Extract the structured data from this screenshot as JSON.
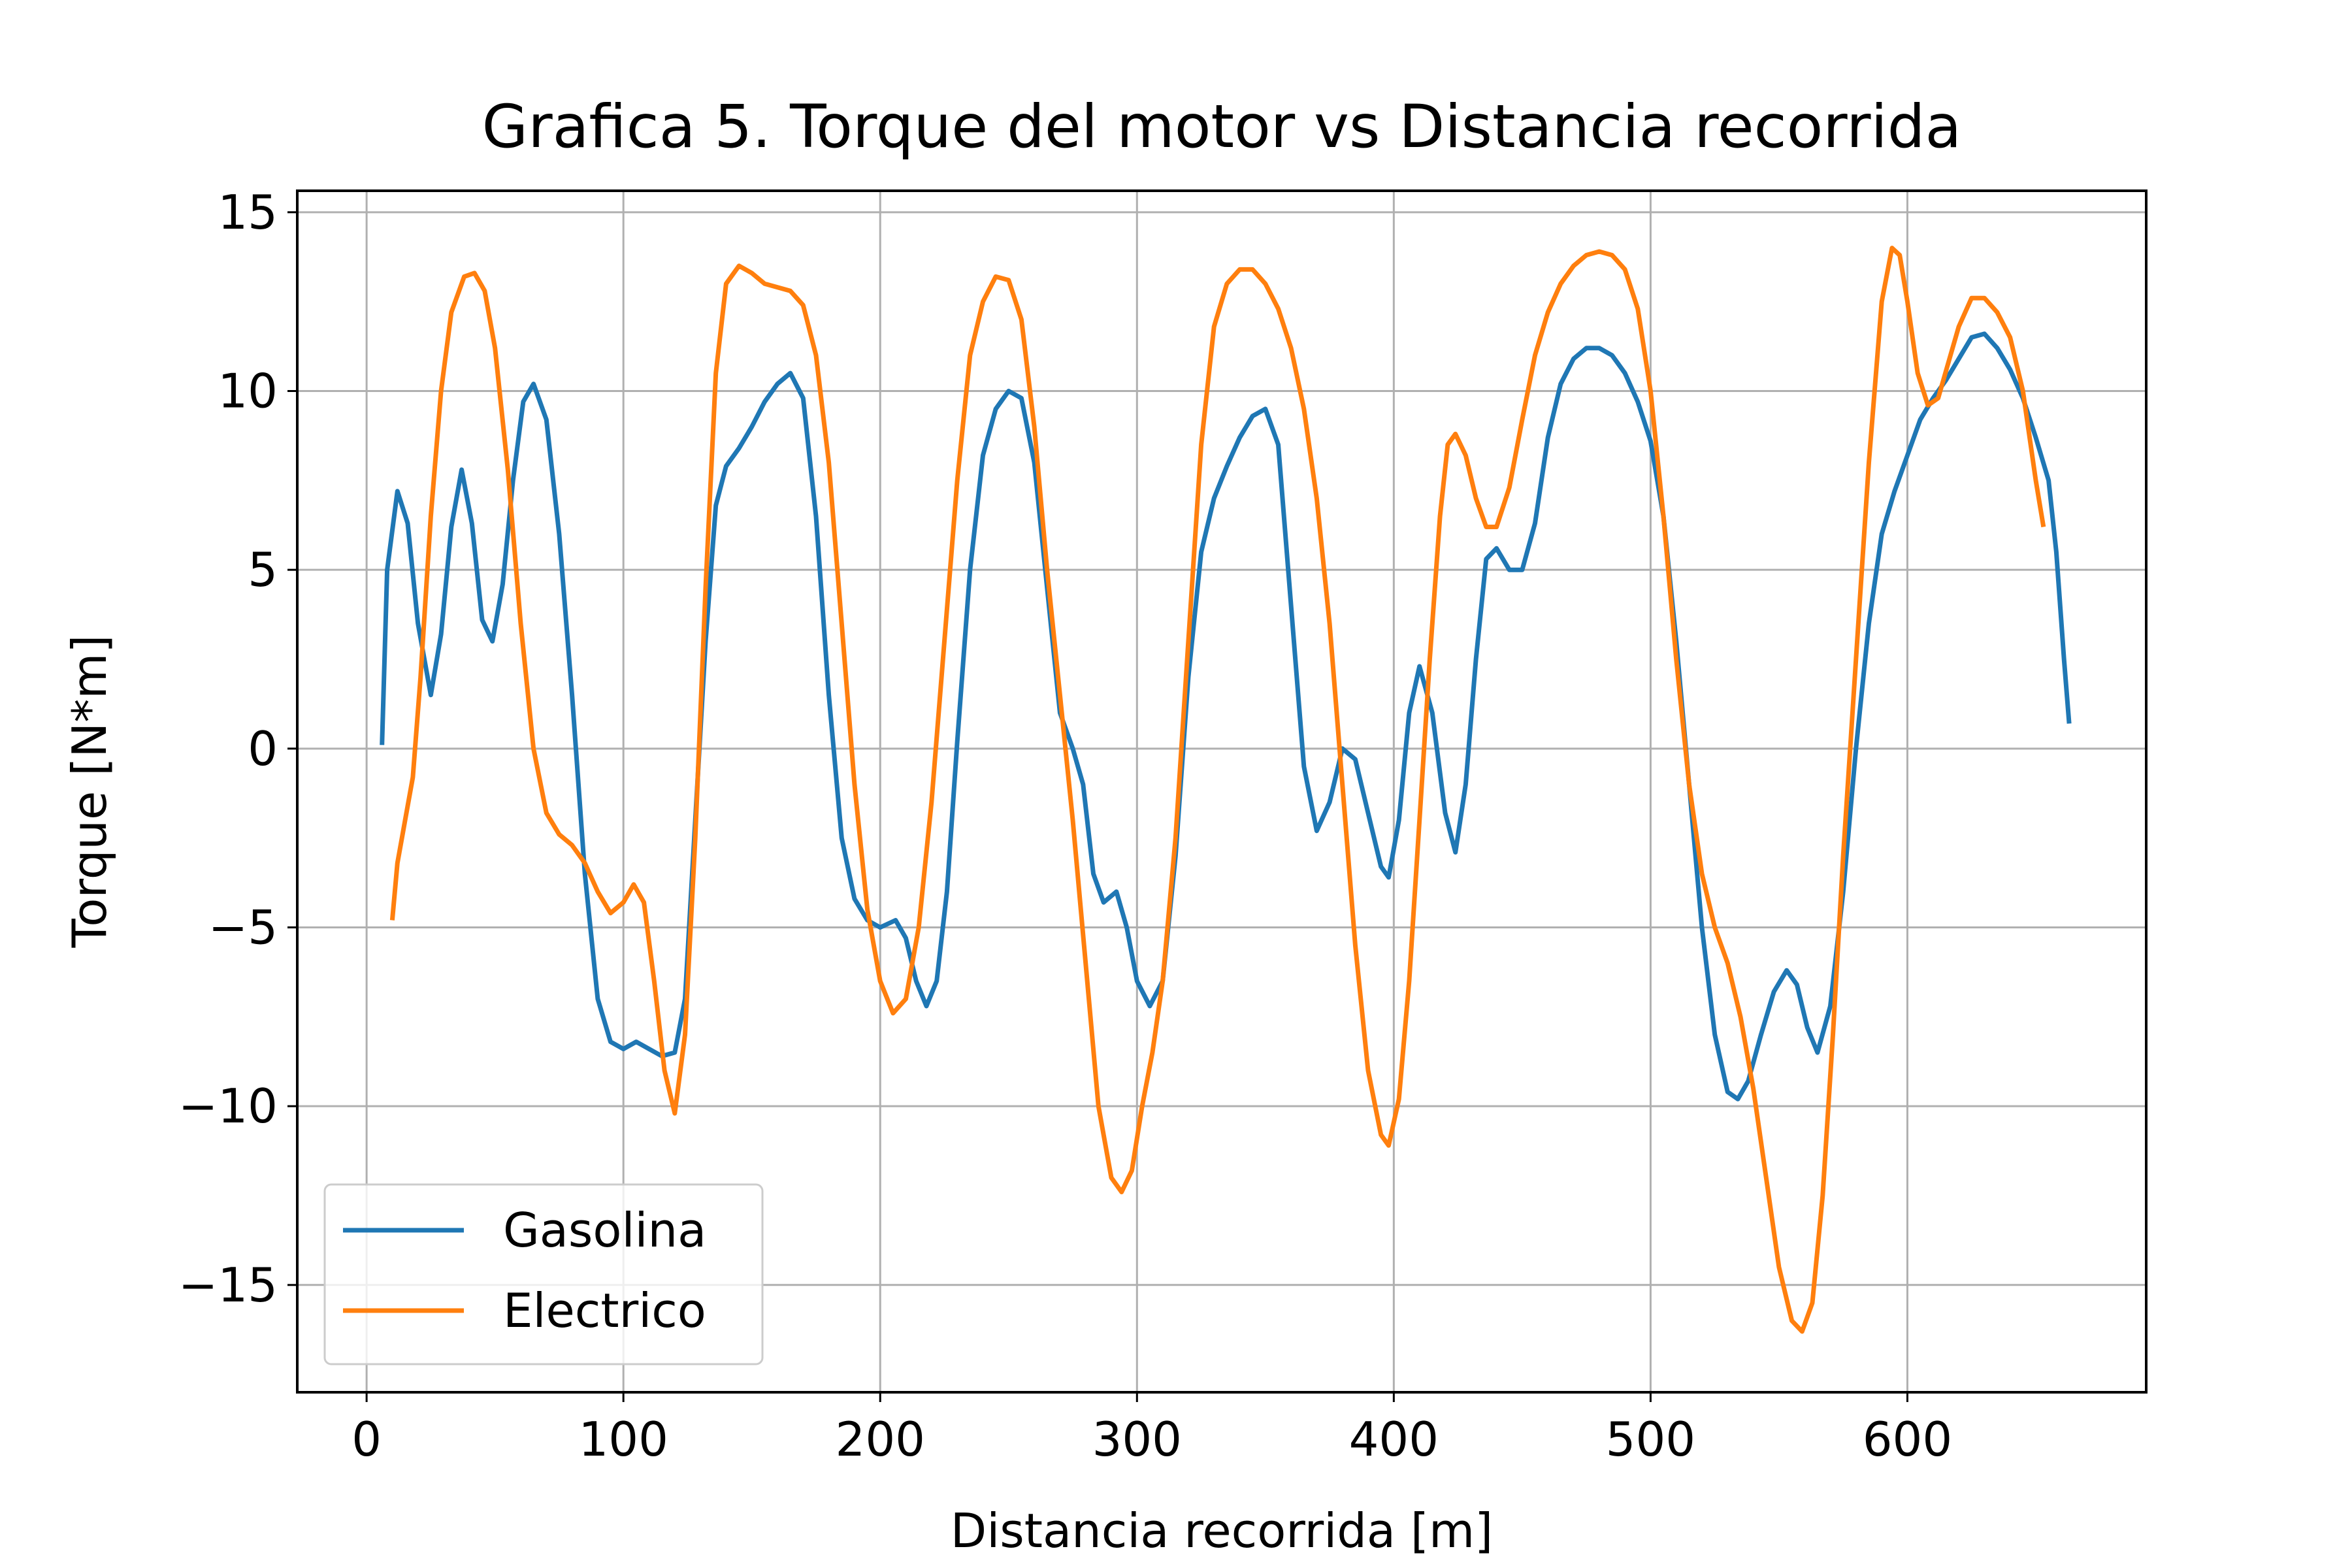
{
  "chart_data": {
    "type": "line",
    "title": "Grafica 5. Torque del motor vs Distancia recorrida",
    "xlabel": "Distancia recorrida [m]",
    "ylabel": "Torque [N*m]",
    "xlim": [
      -27,
      693
    ],
    "ylim": [
      -18,
      15.6
    ],
    "x_ticks": [
      0,
      100,
      200,
      300,
      400,
      500,
      600
    ],
    "x_tick_labels": [
      "0",
      "100",
      "200",
      "300",
      "400",
      "500",
      "600"
    ],
    "y_ticks": [
      15,
      10,
      5,
      0,
      -5,
      -10,
      -15
    ],
    "y_tick_labels": [
      "15",
      "10",
      "5",
      "0",
      "−5",
      "−10",
      "−15"
    ],
    "grid": true,
    "legend_position": "lower-left",
    "series": [
      {
        "name": "Gasolina",
        "color": "#1f77b4",
        "points": [
          [
            6,
            0.1
          ],
          [
            8,
            5.0
          ],
          [
            12,
            7.2
          ],
          [
            16,
            6.3
          ],
          [
            20,
            3.5
          ],
          [
            25,
            1.5
          ],
          [
            29,
            3.2
          ],
          [
            33,
            6.2
          ],
          [
            37,
            7.8
          ],
          [
            41,
            6.3
          ],
          [
            45,
            3.6
          ],
          [
            49,
            3.0
          ],
          [
            53,
            4.6
          ],
          [
            57,
            7.5
          ],
          [
            61,
            9.7
          ],
          [
            65,
            10.2
          ],
          [
            70,
            9.2
          ],
          [
            75,
            6.0
          ],
          [
            80,
            1.5
          ],
          [
            85,
            -3.5
          ],
          [
            90,
            -7.0
          ],
          [
            95,
            -8.2
          ],
          [
            100,
            -8.4
          ],
          [
            105,
            -8.2
          ],
          [
            110,
            -8.4
          ],
          [
            115,
            -8.6
          ],
          [
            120,
            -8.5
          ],
          [
            124,
            -7.0
          ],
          [
            128,
            -2.0
          ],
          [
            132,
            3.0
          ],
          [
            136,
            6.8
          ],
          [
            140,
            7.9
          ],
          [
            145,
            8.4
          ],
          [
            150,
            9.0
          ],
          [
            155,
            9.7
          ],
          [
            160,
            10.2
          ],
          [
            165,
            10.5
          ],
          [
            170,
            9.8
          ],
          [
            175,
            6.5
          ],
          [
            180,
            1.5
          ],
          [
            185,
            -2.5
          ],
          [
            190,
            -4.2
          ],
          [
            195,
            -4.8
          ],
          [
            200,
            -5.0
          ],
          [
            206,
            -4.8
          ],
          [
            210,
            -5.3
          ],
          [
            214,
            -6.5
          ],
          [
            218,
            -7.2
          ],
          [
            222,
            -6.5
          ],
          [
            226,
            -4.0
          ],
          [
            230,
            0.2
          ],
          [
            235,
            5.0
          ],
          [
            240,
            8.2
          ],
          [
            245,
            9.5
          ],
          [
            250,
            10.0
          ],
          [
            255,
            9.8
          ],
          [
            260,
            8.0
          ],
          [
            265,
            4.5
          ],
          [
            270,
            1.0
          ],
          [
            275,
            0.0
          ],
          [
            279,
            -1.0
          ],
          [
            283,
            -3.5
          ],
          [
            287,
            -4.3
          ],
          [
            292,
            -4.0
          ],
          [
            296,
            -5.0
          ],
          [
            300,
            -6.5
          ],
          [
            305,
            -7.2
          ],
          [
            310,
            -6.5
          ],
          [
            315,
            -3.0
          ],
          [
            320,
            2.0
          ],
          [
            325,
            5.5
          ],
          [
            330,
            7.0
          ],
          [
            335,
            7.9
          ],
          [
            340,
            8.7
          ],
          [
            345,
            9.3
          ],
          [
            350,
            9.5
          ],
          [
            355,
            8.5
          ],
          [
            360,
            4.0
          ],
          [
            365,
            -0.5
          ],
          [
            370,
            -2.3
          ],
          [
            375,
            -1.5
          ],
          [
            380,
            0.0
          ],
          [
            385,
            -0.3
          ],
          [
            390,
            -1.8
          ],
          [
            395,
            -3.3
          ],
          [
            398,
            -3.6
          ],
          [
            402,
            -2.0
          ],
          [
            406,
            1.0
          ],
          [
            410,
            2.3
          ],
          [
            415,
            1.0
          ],
          [
            420,
            -1.8
          ],
          [
            424,
            -2.9
          ],
          [
            428,
            -1.0
          ],
          [
            432,
            2.5
          ],
          [
            436,
            5.3
          ],
          [
            440,
            5.6
          ],
          [
            445,
            5.0
          ],
          [
            450,
            5.0
          ],
          [
            455,
            6.3
          ],
          [
            460,
            8.7
          ],
          [
            465,
            10.2
          ],
          [
            470,
            10.9
          ],
          [
            475,
            11.2
          ],
          [
            480,
            11.2
          ],
          [
            485,
            11.0
          ],
          [
            490,
            10.5
          ],
          [
            495,
            9.7
          ],
          [
            500,
            8.6
          ],
          [
            505,
            6.5
          ],
          [
            510,
            3.0
          ],
          [
            515,
            -1.0
          ],
          [
            520,
            -5.0
          ],
          [
            525,
            -8.0
          ],
          [
            530,
            -9.6
          ],
          [
            534,
            -9.8
          ],
          [
            538,
            -9.3
          ],
          [
            543,
            -8.0
          ],
          [
            548,
            -6.8
          ],
          [
            553,
            -6.2
          ],
          [
            557,
            -6.6
          ],
          [
            561,
            -7.8
          ],
          [
            565,
            -8.5
          ],
          [
            570,
            -7.2
          ],
          [
            575,
            -4.0
          ],
          [
            580,
            0.0
          ],
          [
            585,
            3.5
          ],
          [
            590,
            6.0
          ],
          [
            595,
            7.2
          ],
          [
            600,
            8.2
          ],
          [
            605,
            9.2
          ],
          [
            610,
            9.8
          ],
          [
            615,
            10.3
          ],
          [
            620,
            10.9
          ],
          [
            625,
            11.5
          ],
          [
            630,
            11.6
          ],
          [
            635,
            11.2
          ],
          [
            640,
            10.6
          ],
          [
            645,
            9.8
          ],
          [
            650,
            8.7
          ],
          [
            655,
            7.5
          ],
          [
            658,
            5.5
          ],
          [
            661,
            2.5
          ],
          [
            663,
            0.7
          ]
        ]
      },
      {
        "name": "Electrico",
        "color": "#ff7f0e",
        "points": [
          [
            10,
            -4.8
          ],
          [
            12,
            -3.2
          ],
          [
            15,
            -2.0
          ],
          [
            18,
            -0.8
          ],
          [
            21,
            2.0
          ],
          [
            25,
            6.5
          ],
          [
            29,
            10.0
          ],
          [
            33,
            12.2
          ],
          [
            38,
            13.2
          ],
          [
            42,
            13.3
          ],
          [
            46,
            12.8
          ],
          [
            50,
            11.2
          ],
          [
            55,
            7.8
          ],
          [
            60,
            3.5
          ],
          [
            65,
            0.0
          ],
          [
            70,
            -1.8
          ],
          [
            75,
            -2.4
          ],
          [
            80,
            -2.7
          ],
          [
            85,
            -3.2
          ],
          [
            90,
            -4.0
          ],
          [
            95,
            -4.6
          ],
          [
            100,
            -4.3
          ],
          [
            104,
            -3.8
          ],
          [
            108,
            -4.3
          ],
          [
            112,
            -6.5
          ],
          [
            116,
            -9.0
          ],
          [
            120,
            -10.2
          ],
          [
            124,
            -8.0
          ],
          [
            128,
            -2.5
          ],
          [
            132,
            4.5
          ],
          [
            136,
            10.5
          ],
          [
            140,
            13.0
          ],
          [
            145,
            13.5
          ],
          [
            150,
            13.3
          ],
          [
            155,
            13.0
          ],
          [
            160,
            12.9
          ],
          [
            165,
            12.8
          ],
          [
            170,
            12.4
          ],
          [
            175,
            11.0
          ],
          [
            180,
            8.0
          ],
          [
            185,
            3.5
          ],
          [
            190,
            -1.0
          ],
          [
            195,
            -4.5
          ],
          [
            200,
            -6.5
          ],
          [
            205,
            -7.4
          ],
          [
            210,
            -7.0
          ],
          [
            215,
            -5.0
          ],
          [
            220,
            -1.5
          ],
          [
            225,
            3.0
          ],
          [
            230,
            7.5
          ],
          [
            235,
            11.0
          ],
          [
            240,
            12.5
          ],
          [
            245,
            13.2
          ],
          [
            250,
            13.1
          ],
          [
            255,
            12.0
          ],
          [
            260,
            9.0
          ],
          [
            265,
            5.0
          ],
          [
            270,
            1.5
          ],
          [
            275,
            -2.0
          ],
          [
            280,
            -6.0
          ],
          [
            285,
            -10.0
          ],
          [
            290,
            -12.0
          ],
          [
            294,
            -12.4
          ],
          [
            298,
            -11.8
          ],
          [
            302,
            -10.0
          ],
          [
            306,
            -8.5
          ],
          [
            310,
            -6.5
          ],
          [
            315,
            -2.5
          ],
          [
            320,
            3.0
          ],
          [
            325,
            8.5
          ],
          [
            330,
            11.8
          ],
          [
            335,
            13.0
          ],
          [
            340,
            13.4
          ],
          [
            345,
            13.4
          ],
          [
            350,
            13.0
          ],
          [
            355,
            12.3
          ],
          [
            360,
            11.2
          ],
          [
            365,
            9.5
          ],
          [
            370,
            7.0
          ],
          [
            375,
            3.5
          ],
          [
            380,
            -1.0
          ],
          [
            385,
            -5.5
          ],
          [
            390,
            -9.0
          ],
          [
            395,
            -10.8
          ],
          [
            398,
            -11.1
          ],
          [
            402,
            -9.8
          ],
          [
            406,
            -6.5
          ],
          [
            410,
            -2.0
          ],
          [
            414,
            2.5
          ],
          [
            418,
            6.5
          ],
          [
            421,
            8.5
          ],
          [
            424,
            8.8
          ],
          [
            428,
            8.2
          ],
          [
            432,
            7.0
          ],
          [
            436,
            6.2
          ],
          [
            440,
            6.2
          ],
          [
            445,
            7.3
          ],
          [
            450,
            9.2
          ],
          [
            455,
            11.0
          ],
          [
            460,
            12.2
          ],
          [
            465,
            13.0
          ],
          [
            470,
            13.5
          ],
          [
            475,
            13.8
          ],
          [
            480,
            13.9
          ],
          [
            485,
            13.8
          ],
          [
            490,
            13.4
          ],
          [
            495,
            12.3
          ],
          [
            500,
            10.0
          ],
          [
            505,
            6.5
          ],
          [
            510,
            2.5
          ],
          [
            515,
            -1.0
          ],
          [
            520,
            -3.5
          ],
          [
            525,
            -5.0
          ],
          [
            530,
            -6.0
          ],
          [
            535,
            -7.5
          ],
          [
            540,
            -9.5
          ],
          [
            545,
            -12.0
          ],
          [
            550,
            -14.5
          ],
          [
            555,
            -16.0
          ],
          [
            559,
            -16.3
          ],
          [
            563,
            -15.5
          ],
          [
            567,
            -12.5
          ],
          [
            571,
            -8.0
          ],
          [
            575,
            -3.0
          ],
          [
            580,
            2.5
          ],
          [
            585,
            8.0
          ],
          [
            590,
            12.5
          ],
          [
            594,
            14.0
          ],
          [
            597,
            13.8
          ],
          [
            600,
            12.5
          ],
          [
            604,
            10.5
          ],
          [
            608,
            9.6
          ],
          [
            612,
            9.8
          ],
          [
            616,
            10.8
          ],
          [
            620,
            11.8
          ],
          [
            625,
            12.6
          ],
          [
            630,
            12.6
          ],
          [
            635,
            12.2
          ],
          [
            640,
            11.5
          ],
          [
            645,
            10.0
          ],
          [
            650,
            7.5
          ],
          [
            653,
            6.2
          ]
        ]
      }
    ]
  }
}
